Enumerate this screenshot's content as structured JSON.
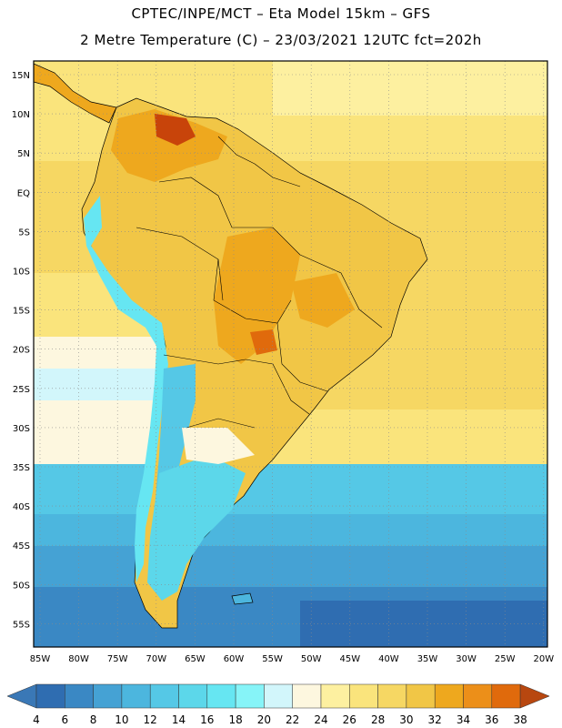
{
  "header": {
    "line1": "CPTEC/INPE/MCT –  Eta Model 15km – GFS",
    "line2": "2 Metre Temperature (C) – 23/03/2021 12UTC fct=202h"
  },
  "map": {
    "lat_labels": [
      "15N",
      "10N",
      "5N",
      "EQ",
      "5S",
      "10S",
      "15S",
      "20S",
      "25S",
      "30S",
      "35S",
      "40S",
      "45S",
      "50S",
      "55S"
    ],
    "lon_labels": [
      "85W",
      "80W",
      "75W",
      "70W",
      "65W",
      "60W",
      "55W",
      "50W",
      "45W",
      "40W",
      "35W",
      "30W",
      "25W",
      "20W"
    ]
  },
  "colorbar": {
    "labels": [
      "4",
      "6",
      "8",
      "10",
      "12",
      "14",
      "16",
      "18",
      "20",
      "22",
      "24",
      "26",
      "28",
      "30",
      "32",
      "34",
      "36",
      "38"
    ],
    "low_color": "#3a78b6",
    "high_color": "#b8470f",
    "colors": [
      "#2f6db1",
      "#3a88c4",
      "#45a2d4",
      "#4cb6de",
      "#55c8e6",
      "#5cd7ea",
      "#66e6f2",
      "#86f4f8",
      "#d2f6fb",
      "#fdf7df",
      "#fdf0a0",
      "#fae47c",
      "#f6d763",
      "#f1c646",
      "#eea81e",
      "#ec8f19",
      "#e06a0c",
      "#c8440a",
      "#b8470f"
    ]
  }
}
